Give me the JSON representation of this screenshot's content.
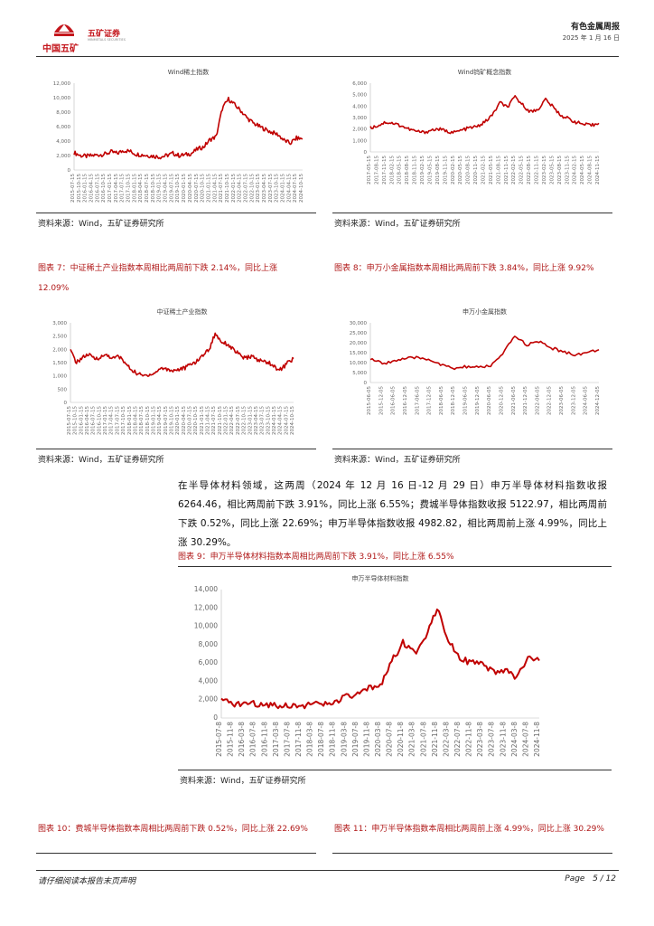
{
  "header": {
    "company_cn": "中国五矿",
    "brand_cn": "五矿证券",
    "brand_en": "MINMETALS SECURITIES",
    "report_type": "有色金属周报",
    "date": "2025 年 1 月 16 日"
  },
  "charts_top": {
    "left": {
      "title": "Wind稀土指数",
      "source": "资料来源：Wind，五矿证券研究所"
    },
    "right": {
      "title": "Wind钨矿概念指数",
      "source": "资料来源：Wind，五矿证券研究所"
    }
  },
  "captions_row2": {
    "fig7": "图表 7：中证稀土产业指数本周相比两周前下跌 2.14%，同比上涨 12.09%",
    "fig8": "图表 8：申万小金属指数本周相比两周前下跌 3.84%，同比上涨 9.92%"
  },
  "charts_mid": {
    "left": {
      "title": "中证稀土产业指数",
      "source": "资料来源：Wind，五矿证券研究所"
    },
    "right": {
      "title": "申万小金属指数",
      "source": "资料来源：Wind，五矿证券研究所"
    }
  },
  "paragraph": "在半导体材料领域，这两周（2024 年 12 月 16 日-12 月 29 日）申万半导体材料指数收报 6264.46，相比两周前下跌 3.91%，同比上涨 6.55%；费城半导体指数收报 5122.97，相比两周前下跌 0.52%，同比上涨 22.69%；申万半导体指数收报 4982.82，相比两周前上涨 4.99%，同比上涨 30.29%。",
  "fig9": {
    "caption": "图表 9：申万半导体材料指数本周相比两周前下跌 3.91%，同比上涨 6.55%",
    "title": "申万半导体材料指数",
    "source": "资料来源：Wind，五矿证券研究所"
  },
  "captions_bottom": {
    "fig10": "图表 10：费城半导体指数本周相比两周前下跌 0.52%，同比上涨 22.69%",
    "fig11": "图表 11：申万半导体指数本周相比两周前上涨 4.99%，同比上涨 30.29%"
  },
  "footer": {
    "disclaimer": "请仔细阅读本报告末页声明",
    "page_label": "Page",
    "page_num": "5 / 12"
  },
  "colors": {
    "line": "#c00000",
    "caption": "#b01818",
    "logo": "#c4161c"
  },
  "chart_data": [
    {
      "type": "line",
      "title": "Wind稀土指数",
      "y_ticks": [
        "12,000",
        "10,000",
        "8,000",
        "6,000",
        "4,000",
        "2,000",
        "0"
      ],
      "ylim": [
        0,
        12000
      ],
      "x": [
        "2015-07-15",
        "2015-10-15",
        "2016-01-15",
        "2016-04-15",
        "2016-07-15",
        "2016-10-15",
        "2017-01-15",
        "2017-04-15",
        "2017-07-15",
        "2017-10-15",
        "2018-01-15",
        "2018-04-15",
        "2018-07-15",
        "2018-10-15",
        "2019-01-15",
        "2019-04-15",
        "2019-07-15",
        "2019-10-15",
        "2020-01-15",
        "2020-04-15",
        "2020-07-15",
        "2020-10-15",
        "2021-01-15",
        "2021-04-15",
        "2021-07-15",
        "2021-10-15",
        "2022-01-15",
        "2022-04-15",
        "2022-07-15",
        "2022-10-15",
        "2023-01-15",
        "2023-04-15",
        "2023-07-15",
        "2023-10-15",
        "2024-01-15",
        "2024-04-15",
        "2024-07-15",
        "2024-10-15"
      ],
      "values": [
        2400,
        2000,
        1900,
        2000,
        2100,
        2200,
        2500,
        2300,
        2700,
        2600,
        2200,
        2100,
        2000,
        1900,
        1800,
        2000,
        2300,
        2000,
        2100,
        2300,
        2900,
        3200,
        4200,
        4600,
        8500,
        9800,
        9000,
        8200,
        7200,
        6500,
        6000,
        5600,
        5200,
        4900,
        4100,
        3700,
        4400,
        4300
      ]
    },
    {
      "type": "line",
      "title": "Wind钨矿概念指数",
      "y_ticks": [
        "6,000",
        "5,000",
        "4,000",
        "3,000",
        "2,000",
        "1,000",
        "0"
      ],
      "ylim": [
        0,
        6000
      ],
      "x": [
        "2017-05-15",
        "2017-08-15",
        "2017-11-15",
        "2018-02-15",
        "2018-05-15",
        "2018-08-15",
        "2018-11-15",
        "2019-02-15",
        "2019-05-15",
        "2019-08-15",
        "2019-11-15",
        "2020-02-15",
        "2020-05-15",
        "2020-08-15",
        "2020-11-15",
        "2021-02-15",
        "2021-05-15",
        "2021-08-15",
        "2021-11-15",
        "2022-02-15",
        "2022-05-15",
        "2022-08-15",
        "2022-11-15",
        "2023-02-15",
        "2023-05-15",
        "2023-08-15",
        "2023-11-15",
        "2024-02-15",
        "2024-05-15",
        "2024-08-15",
        "2024-11-15"
      ],
      "values": [
        2100,
        2300,
        2600,
        2500,
        2300,
        2000,
        1800,
        1700,
        1900,
        2000,
        1800,
        1700,
        1900,
        2100,
        2200,
        2600,
        3200,
        4300,
        3900,
        4800,
        4100,
        3500,
        3700,
        4600,
        3900,
        3200,
        2900,
        2600,
        2400,
        2300,
        2500
      ]
    },
    {
      "type": "line",
      "title": "中证稀土产业指数",
      "y_ticks": [
        "3,000",
        "2,500",
        "2,000",
        "1,500",
        "1,000",
        "500",
        "0"
      ],
      "ylim": [
        0,
        3000
      ],
      "x": [
        "2015-07-15",
        "2015-10-15",
        "2016-01-15",
        "2016-04-15",
        "2016-07-15",
        "2016-10-15",
        "2017-01-15",
        "2017-04-15",
        "2017-07-15",
        "2017-10-15",
        "2018-01-15",
        "2018-04-15",
        "2018-07-15",
        "2018-10-15",
        "2019-01-15",
        "2019-04-15",
        "2019-07-15",
        "2019-10-15",
        "2020-01-15",
        "2020-04-15",
        "2020-07-15",
        "2020-10-15",
        "2021-01-15",
        "2021-04-15",
        "2021-07-15",
        "2021-10-15",
        "2022-01-15",
        "2022-04-15",
        "2022-07-15",
        "2022-10-15",
        "2023-01-15",
        "2023-04-15",
        "2023-07-15",
        "2023-10-15",
        "2024-01-15",
        "2024-04-15",
        "2024-07-15",
        "2024-10-15"
      ],
      "values": [
        1950,
        1500,
        1700,
        1800,
        1650,
        1700,
        1800,
        1650,
        1750,
        1500,
        1250,
        1100,
        1000,
        1050,
        1100,
        1300,
        1250,
        1200,
        1250,
        1300,
        1450,
        1550,
        1800,
        2000,
        2600,
        2300,
        2200,
        2000,
        1800,
        1650,
        1750,
        1600,
        1550,
        1500,
        1300,
        1250,
        1500,
        1650
      ]
    },
    {
      "type": "line",
      "title": "申万小金属指数",
      "y_ticks": [
        "30,000",
        "25,000",
        "20,000",
        "15,000",
        "10,000",
        "5,000",
        "0"
      ],
      "ylim": [
        0,
        30000
      ],
      "x": [
        "2015-06-05",
        "2015-12-05",
        "2016-06-05",
        "2016-12-05",
        "2017-06-05",
        "2017-12-05",
        "2018-06-05",
        "2018-12-05",
        "2019-06-05",
        "2019-12-05",
        "2020-06-05",
        "2020-12-05",
        "2021-06-05",
        "2021-12-05",
        "2022-06-05",
        "2022-12-05",
        "2023-06-05",
        "2023-12-05",
        "2024-06-05",
        "2024-12-05"
      ],
      "values": [
        12000,
        9500,
        11000,
        12000,
        12500,
        11500,
        8500,
        7000,
        8000,
        7500,
        8500,
        14000,
        23500,
        19000,
        20500,
        17500,
        15500,
        14000,
        15000,
        16500
      ]
    },
    {
      "type": "line",
      "title": "申万半导体材料指数",
      "y_ticks": [
        "14,000",
        "12,000",
        "10,000",
        "8,000",
        "6,000",
        "4,000",
        "2,000",
        "0"
      ],
      "ylim": [
        0,
        14000
      ],
      "x": [
        "2015-07-8",
        "2015-11-8",
        "2016-03-8",
        "2016-07-8",
        "2016-11-8",
        "2017-03-8",
        "2017-07-8",
        "2017-11-8",
        "2018-03-8",
        "2018-07-8",
        "2018-11-8",
        "2019-03-8",
        "2019-07-8",
        "2019-11-8",
        "2020-03-8",
        "2020-07-8",
        "2020-11-8",
        "2021-03-8",
        "2021-07-8",
        "2021-11-8",
        "2022-03-8",
        "2022-07-8",
        "2022-11-8",
        "2023-03-8",
        "2023-07-8",
        "2023-11-8",
        "2024-03-8",
        "2024-07-8",
        "2024-11-8"
      ],
      "values": [
        1900,
        1500,
        1600,
        1550,
        1500,
        1400,
        1400,
        1350,
        1500,
        1450,
        1700,
        2300,
        2500,
        3200,
        3600,
        6200,
        8200,
        7000,
        9000,
        12000,
        8600,
        6600,
        6000,
        5800,
        4900,
        5200,
        4400,
        6500,
        6264
      ]
    }
  ]
}
